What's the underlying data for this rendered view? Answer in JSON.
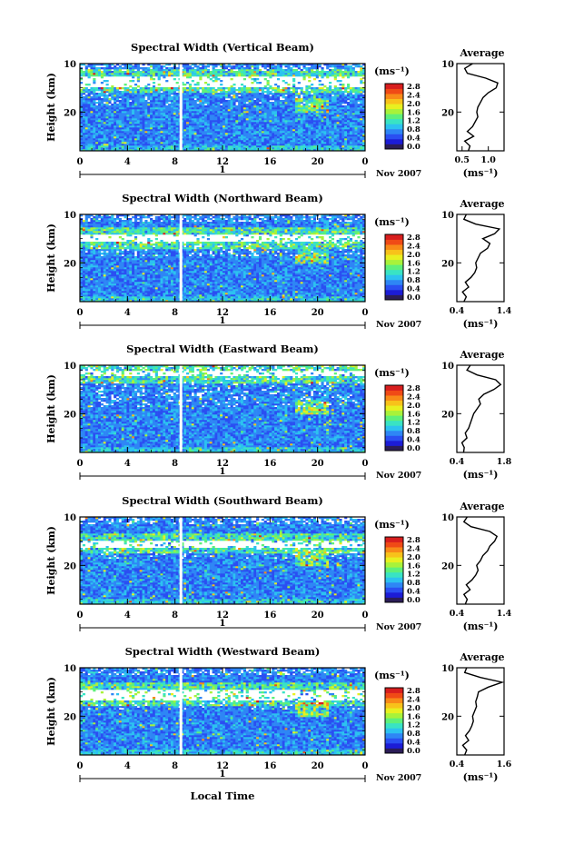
{
  "figure": {
    "xlabel": "Local Time",
    "date_label": "Nov 2007",
    "day_marker": "1",
    "colorbar_unit": "(ms⁻¹)",
    "colorbar_ticks": [
      "2.8",
      "2.4",
      "2.0",
      "1.6",
      "1.2",
      "0.8",
      "0.4",
      "0.0"
    ],
    "colorbar_colors": [
      "#2b1d57",
      "#1c1cd6",
      "#2a4ff2",
      "#2e86f5",
      "#2cc2f0",
      "#39e3c4",
      "#5ef07a",
      "#a8f23a",
      "#e8f020",
      "#f8c21a",
      "#f88a18",
      "#f04a16",
      "#d81e1e"
    ],
    "x_ticks": [
      "0",
      "4",
      "8",
      "12",
      "16",
      "20",
      "0"
    ],
    "y_ticks": [
      "20",
      "10"
    ],
    "ylabel": "Height (km)",
    "avg_title": "Average",
    "avg_xlabel": "(ms⁻¹)"
  },
  "chart_data": [
    {
      "type": "heatmap",
      "title": "Spectral Width (Vertical Beam)",
      "xlabel": "",
      "ylabel": "Height (km)",
      "xlim": [
        0,
        24
      ],
      "ylim": [
        2,
        20
      ],
      "x_ticks": [
        0,
        4,
        8,
        12,
        16,
        20,
        24
      ],
      "y_ticks": [
        10,
        20
      ],
      "colorbar": {
        "label": "(ms⁻¹)",
        "range": [
          0.0,
          3.0
        ]
      },
      "data_gap_hour": 8.5,
      "white_band_km": [
        15.3,
        17.2
      ],
      "profile": {
        "title": "Average",
        "xlabel": "(ms⁻¹)",
        "xlim": [
          0.4,
          1.3
        ],
        "x_ticks": [
          0.5,
          1.0
        ],
        "x_tick_labels": [
          "0.5",
          "1.0"
        ],
        "height": [
          2,
          3,
          4,
          5,
          6,
          7,
          8,
          9,
          10,
          11,
          12,
          13,
          14,
          15,
          16,
          17,
          18,
          19,
          20
        ],
        "value": [
          0.62,
          0.65,
          0.55,
          0.72,
          0.6,
          0.7,
          0.75,
          0.8,
          0.78,
          0.8,
          0.85,
          0.9,
          1.0,
          1.15,
          1.18,
          0.95,
          0.6,
          0.55,
          0.7
        ]
      }
    },
    {
      "type": "heatmap",
      "title": "Spectral Width (Northward Beam)",
      "xlabel": "",
      "ylabel": "Height (km)",
      "xlim": [
        0,
        24
      ],
      "ylim": [
        2,
        20
      ],
      "x_ticks": [
        0,
        4,
        8,
        12,
        16,
        20,
        24
      ],
      "y_ticks": [
        10,
        20
      ],
      "colorbar": {
        "label": "(ms⁻¹)",
        "range": [
          0.0,
          3.0
        ]
      },
      "data_gap_hour": 8.5,
      "white_band_km": [
        14.2,
        16.0
      ],
      "profile": {
        "title": "Average",
        "xlabel": "(ms⁻¹)",
        "xlim": [
          0.4,
          1.4
        ],
        "x_ticks": [
          0.4,
          1.4
        ],
        "x_tick_labels": [
          "0.4",
          "1.4"
        ],
        "height": [
          2,
          3,
          4,
          5,
          6,
          7,
          8,
          9,
          10,
          11,
          12,
          13,
          14,
          15,
          16,
          17,
          18,
          19,
          20
        ],
        "value": [
          0.55,
          0.6,
          0.52,
          0.65,
          0.58,
          0.7,
          0.78,
          0.82,
          0.8,
          0.85,
          0.9,
          1.05,
          1.1,
          0.95,
          1.2,
          1.3,
          0.8,
          0.55,
          0.6
        ]
      }
    },
    {
      "type": "heatmap",
      "title": "Spectral Width (Eastward Beam)",
      "xlabel": "",
      "ylabel": "Height (km)",
      "xlim": [
        0,
        24
      ],
      "ylim": [
        2,
        20
      ],
      "x_ticks": [
        0,
        4,
        8,
        12,
        16,
        20,
        24
      ],
      "y_ticks": [
        10,
        20
      ],
      "colorbar": {
        "label": "(ms⁻¹)",
        "range": [
          0.0,
          3.0
        ]
      },
      "data_gap_hour": 8.5,
      "white_band_km": [
        17.6,
        19.0
      ],
      "profile": {
        "title": "Average",
        "xlabel": "(ms⁻¹)",
        "xlim": [
          0.4,
          1.8
        ],
        "x_ticks": [
          0.4,
          1.8
        ],
        "x_tick_labels": [
          "0.4",
          "1.8"
        ],
        "height": [
          2,
          3,
          4,
          5,
          6,
          7,
          8,
          9,
          10,
          11,
          12,
          13,
          14,
          15,
          16,
          17,
          18,
          19,
          20
        ],
        "value": [
          0.6,
          0.62,
          0.55,
          0.7,
          0.65,
          0.75,
          0.8,
          0.85,
          0.9,
          1.0,
          1.1,
          1.05,
          1.2,
          1.5,
          1.7,
          1.55,
          1.0,
          0.7,
          0.8
        ]
      }
    },
    {
      "type": "heatmap",
      "title": "Spectral Width (Southward Beam)",
      "xlabel": "",
      "ylabel": "Height (km)",
      "xlim": [
        0,
        24
      ],
      "ylim": [
        2,
        20
      ],
      "x_ticks": [
        0,
        4,
        8,
        12,
        16,
        20,
        24
      ],
      "y_ticks": [
        10,
        20
      ],
      "colorbar": {
        "label": "(ms⁻¹)",
        "range": [
          0.0,
          3.0
        ]
      },
      "data_gap_hour": 8.5,
      "white_band_km": [
        13.6,
        15.0
      ],
      "profile": {
        "title": "Average",
        "xlabel": "(ms⁻¹)",
        "xlim": [
          0.4,
          1.4
        ],
        "x_ticks": [
          0.4,
          1.4
        ],
        "x_tick_labels": [
          "0.4",
          "1.4"
        ],
        "height": [
          2,
          3,
          4,
          5,
          6,
          7,
          8,
          9,
          10,
          11,
          12,
          13,
          14,
          15,
          16,
          17,
          18,
          19,
          20
        ],
        "value": [
          0.58,
          0.62,
          0.55,
          0.68,
          0.6,
          0.72,
          0.8,
          0.85,
          0.82,
          0.9,
          0.95,
          1.05,
          1.1,
          1.2,
          1.25,
          1.1,
          0.7,
          0.55,
          0.62
        ]
      }
    },
    {
      "type": "heatmap",
      "title": "Spectral Width (Westward Beam)",
      "xlabel": "Local Time",
      "ylabel": "Height (km)",
      "xlim": [
        0,
        24
      ],
      "ylim": [
        2,
        20
      ],
      "x_ticks": [
        0,
        4,
        8,
        12,
        16,
        20,
        24
      ],
      "y_ticks": [
        10,
        20
      ],
      "colorbar": {
        "label": "(ms⁻¹)",
        "range": [
          0.0,
          3.0
        ]
      },
      "data_gap_hour": 8.5,
      "white_band_km": [
        13.2,
        15.6
      ],
      "profile": {
        "title": "Average",
        "xlabel": "(ms⁻¹)",
        "xlim": [
          0.4,
          1.6
        ],
        "x_ticks": [
          0.4,
          1.6
        ],
        "x_tick_labels": [
          "0.4",
          "1.6"
        ],
        "height": [
          2,
          3,
          4,
          5,
          6,
          7,
          8,
          9,
          10,
          11,
          12,
          13,
          14,
          15,
          16,
          17,
          18,
          19,
          20
        ],
        "value": [
          0.6,
          0.65,
          0.55,
          0.7,
          0.62,
          0.72,
          0.78,
          0.82,
          0.8,
          0.85,
          0.9,
          0.88,
          0.92,
          0.95,
          1.2,
          1.55,
          1.0,
          0.6,
          0.65
        ]
      }
    }
  ]
}
